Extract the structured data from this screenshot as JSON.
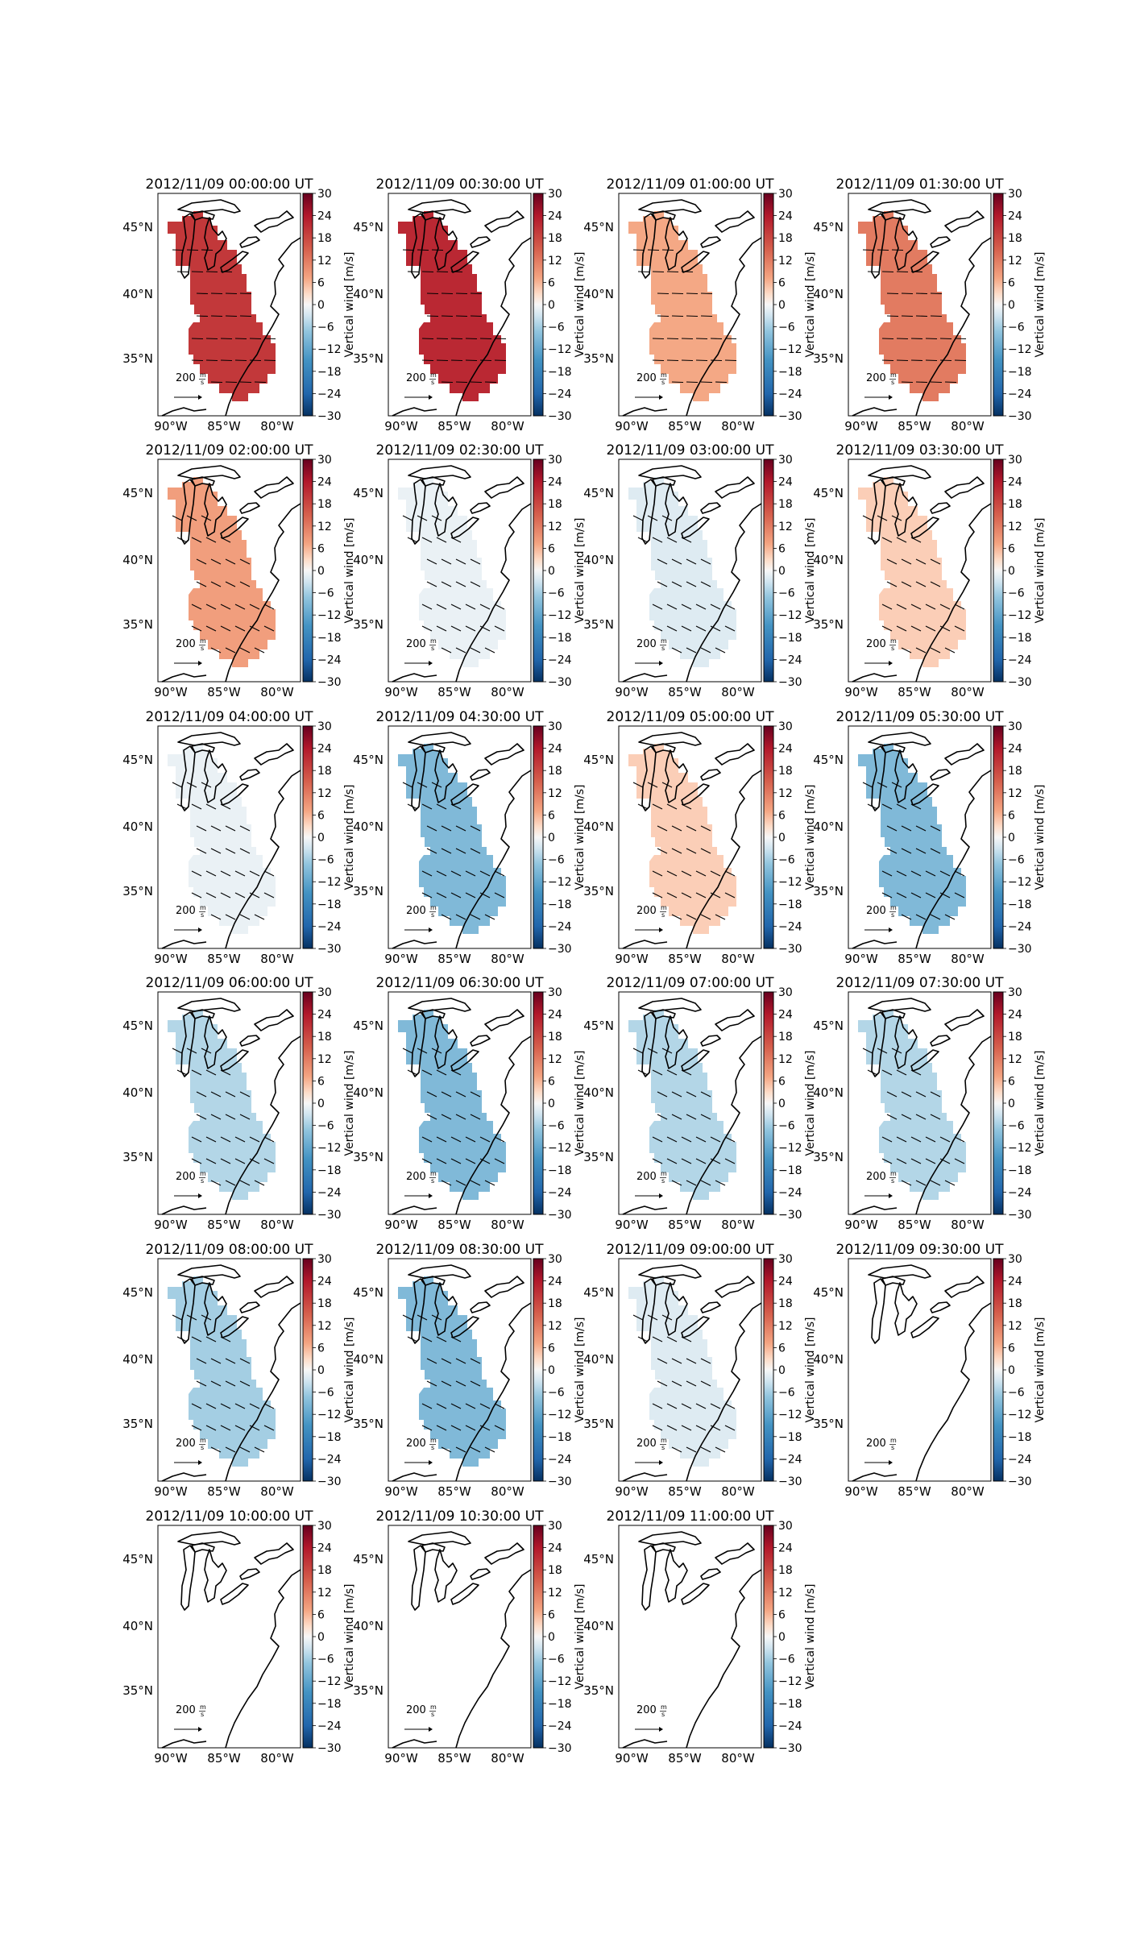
{
  "figure": {
    "colorbar_label": "Vertical wind [m/s]",
    "colorbar_ticks": [
      "30",
      "24",
      "18",
      "12",
      "6",
      "0",
      "−6",
      "−12",
      "−18",
      "−24",
      "−30"
    ],
    "colorbar_range": [
      -30,
      30
    ],
    "lat_ticks": [
      "45°N",
      "40°N",
      "35°N"
    ],
    "lon_ticks": [
      "90°W",
      "85°W",
      "80°W"
    ],
    "scale_text": "200",
    "scale_unit_num": "m",
    "scale_unit_den": "s",
    "colors": {
      "neg_max": "#053061",
      "neg_mid": "#4393c3",
      "neutral": "#f7f7f7",
      "pos_mid": "#f4a582",
      "pos_max": "#67001f"
    }
  },
  "panels": [
    {
      "title": "2012/11/09 00:00:00 UT",
      "value": 20,
      "arrows": "east"
    },
    {
      "title": "2012/11/09 00:30:00 UT",
      "value": 22,
      "arrows": "east"
    },
    {
      "title": "2012/11/09 01:00:00 UT",
      "value": 7,
      "arrows": "east"
    },
    {
      "title": "2012/11/09 01:30:00 UT",
      "value": 12,
      "arrows": "east"
    },
    {
      "title": "2012/11/09 02:00:00 UT",
      "value": 8,
      "arrows": "southeast"
    },
    {
      "title": "2012/11/09 02:30:00 UT",
      "value": -1,
      "arrows": "southeast"
    },
    {
      "title": "2012/11/09 03:00:00 UT",
      "value": -2,
      "arrows": "southeast"
    },
    {
      "title": "2012/11/09 03:30:00 UT",
      "value": 4,
      "arrows": "southeast"
    },
    {
      "title": "2012/11/09 04:00:00 UT",
      "value": -1,
      "arrows": "southeast"
    },
    {
      "title": "2012/11/09 04:30:00 UT",
      "value": -9,
      "arrows": "southeast"
    },
    {
      "title": "2012/11/09 05:00:00 UT",
      "value": 4,
      "arrows": "southeast"
    },
    {
      "title": "2012/11/09 05:30:00 UT",
      "value": -9,
      "arrows": "southeast"
    },
    {
      "title": "2012/11/09 06:00:00 UT",
      "value": -5,
      "arrows": "southeast"
    },
    {
      "title": "2012/11/09 06:30:00 UT",
      "value": -9,
      "arrows": "southeast"
    },
    {
      "title": "2012/11/09 07:00:00 UT",
      "value": -5,
      "arrows": "southeast"
    },
    {
      "title": "2012/11/09 07:30:00 UT",
      "value": -5,
      "arrows": "southeast"
    },
    {
      "title": "2012/11/09 08:00:00 UT",
      "value": -6,
      "arrows": "southeast"
    },
    {
      "title": "2012/11/09 08:30:00 UT",
      "value": -9,
      "arrows": "southeast"
    },
    {
      "title": "2012/11/09 09:00:00 UT",
      "value": -2,
      "arrows": "southeast"
    },
    {
      "title": "2012/11/09 09:30:00 UT",
      "value": null,
      "arrows": "none"
    },
    {
      "title": "2012/11/09 10:00:00 UT",
      "value": null,
      "arrows": "none"
    },
    {
      "title": "2012/11/09 10:30:00 UT",
      "value": null,
      "arrows": "none"
    },
    {
      "title": "2012/11/09 11:00:00 UT",
      "value": null,
      "arrows": "none"
    }
  ]
}
